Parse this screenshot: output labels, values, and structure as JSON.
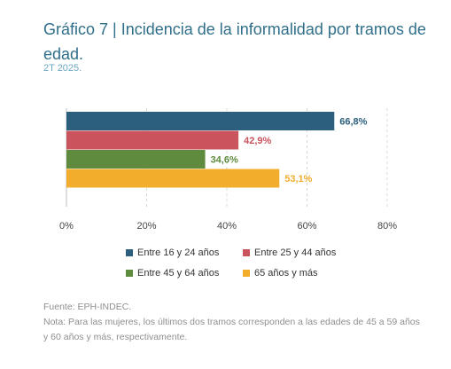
{
  "header": {
    "title": "Gráfico 7 | Incidencia de la informalidad por tramos de edad.",
    "subtitle": "2T 2025."
  },
  "chart_data": {
    "type": "bar",
    "orientation": "horizontal",
    "categories": [
      "Entre 16 y 24 años",
      "Entre 25 y 44 años",
      "Entre 45 y 64 años",
      "65 años y más"
    ],
    "values": [
      66.8,
      42.9,
      34.6,
      53.1
    ],
    "value_labels": [
      "66,8%",
      "42,9%",
      "34,6%",
      "53,1%"
    ],
    "colors": [
      "#2b5f7d",
      "#c9545d",
      "#5f8b3e",
      "#f1ad2b"
    ],
    "label_colors": [
      "#2b5f7d",
      "#c9545d",
      "#5f8b3e",
      "#f1ad2b"
    ],
    "xlim": [
      0,
      80
    ],
    "xticks": [
      0,
      20,
      40,
      60,
      80
    ],
    "xtick_labels": [
      "0%",
      "20%",
      "40%",
      "60%",
      "80%"
    ],
    "grid": true,
    "legend_position": "bottom"
  },
  "footer": {
    "source": "Fuente: EPH-INDEC.",
    "note": "Nota: Para las mujeres, los últimos dos tramos corresponden a las edades de 45 a 59 años y 60 años y más, respectivamente."
  }
}
